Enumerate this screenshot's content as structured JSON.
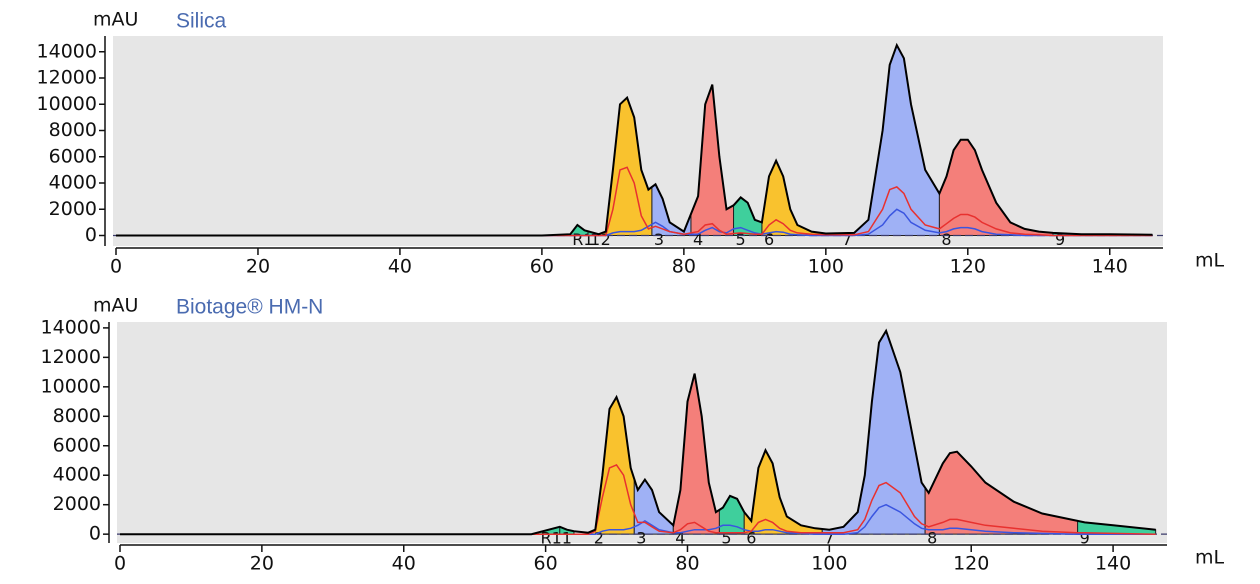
{
  "chart_data": [
    {
      "type": "area",
      "title": "Silica",
      "y_label": "mAU",
      "x_label": "mL",
      "xlim": [
        0,
        147.5
      ],
      "ylim": [
        -800,
        15200
      ],
      "xticks": [
        0,
        20,
        40,
        60,
        80,
        100,
        120,
        140
      ],
      "yticks": [
        0,
        2000,
        4000,
        6000,
        8000,
        10000,
        12000,
        14000
      ],
      "x": [
        0,
        60,
        64,
        65,
        66,
        68,
        69,
        70,
        71,
        72,
        73,
        74,
        75,
        76,
        77,
        78,
        80,
        82,
        83,
        84,
        85,
        86,
        87,
        88,
        89,
        90,
        91,
        92,
        93,
        94,
        95,
        96,
        98,
        100,
        104,
        106,
        108,
        109,
        110,
        111,
        112,
        114,
        116,
        117,
        118,
        119,
        120,
        121,
        122,
        124,
        126,
        128,
        130,
        132,
        136,
        140,
        146
      ],
      "series": [
        {
          "color": "#000000",
          "values": [
            0,
            0,
            100,
            800,
            400,
            100,
            300,
            5000,
            10000,
            10500,
            9000,
            5000,
            3500,
            3900,
            2800,
            1000,
            300,
            3000,
            10000,
            11500,
            6000,
            2000,
            2300,
            2900,
            2500,
            1200,
            1000,
            4500,
            5700,
            4500,
            2000,
            800,
            300,
            150,
            200,
            1200,
            8000,
            13000,
            14500,
            13500,
            10000,
            5000,
            3200,
            4500,
            6500,
            7300,
            7300,
            6500,
            5000,
            2500,
            1000,
            500,
            300,
            200,
            100,
            100,
            50
          ]
        },
        {
          "color": "#e8312f",
          "values": [
            0,
            0,
            0,
            0,
            0,
            0,
            0,
            2000,
            5000,
            5200,
            4000,
            1500,
            500,
            700,
            500,
            300,
            100,
            300,
            800,
            900,
            400,
            100,
            150,
            200,
            150,
            100,
            100,
            800,
            1200,
            900,
            400,
            200,
            100,
            50,
            50,
            300,
            2000,
            3500,
            3700,
            3200,
            2000,
            800,
            500,
            900,
            1300,
            1600,
            1600,
            1400,
            1000,
            500,
            200,
            100,
            50,
            0,
            0,
            0,
            0
          ]
        },
        {
          "color": "#3a55e0",
          "values": [
            0,
            0,
            0,
            0,
            0,
            0,
            0,
            200,
            300,
            300,
            300,
            400,
            700,
            1000,
            700,
            300,
            100,
            100,
            400,
            600,
            300,
            200,
            500,
            600,
            400,
            200,
            100,
            200,
            300,
            250,
            100,
            50,
            0,
            0,
            0,
            100,
            800,
            1500,
            2000,
            1700,
            1000,
            400,
            200,
            300,
            500,
            600,
            600,
            500,
            300,
            100,
            50,
            0,
            0,
            0,
            0,
            0,
            0
          ]
        }
      ],
      "fractions": [
        {
          "label": "R1",
          "start": 64,
          "end": 66.5,
          "color": "#3fcf9c"
        },
        {
          "label": "1",
          "start": 66.5,
          "end": 68,
          "color": "#3fcf9c"
        },
        {
          "label": "2",
          "start": 68,
          "end": 75.5,
          "color": "#f9c22e"
        },
        {
          "label": "3",
          "start": 75.5,
          "end": 81,
          "color": "#9fb1f5"
        },
        {
          "label": "4",
          "start": 81,
          "end": 87,
          "color": "#f47f7a"
        },
        {
          "label": "5",
          "start": 87,
          "end": 91,
          "color": "#3fcf9c"
        },
        {
          "label": "6",
          "start": 91,
          "end": 102,
          "color": "#f9c22e"
        },
        {
          "label": "7",
          "start": 102,
          "end": 116,
          "color": "#9fb1f5"
        },
        {
          "label": "8",
          "start": 116,
          "end": 132,
          "color": "#f47f7a"
        },
        {
          "label": "9",
          "start": 132,
          "end": 146,
          "color": "#3fcf9c"
        }
      ]
    },
    {
      "type": "area",
      "title": "Biotage® HM-N",
      "y_label": "mAU",
      "x_label": "mL",
      "xlim": [
        0,
        147.6
      ],
      "ylim": [
        -600,
        14400
      ],
      "xticks": [
        0,
        20,
        40,
        60,
        80,
        100,
        120,
        140
      ],
      "yticks": [
        0,
        2000,
        4000,
        6000,
        8000,
        10000,
        12000,
        14000
      ],
      "x": [
        0,
        58,
        62,
        63,
        64,
        66,
        67,
        68,
        69,
        70,
        71,
        72,
        73,
        74,
        75,
        76,
        78,
        79,
        80,
        81,
        82,
        83,
        84,
        85,
        86,
        87,
        88,
        89,
        90,
        91,
        92,
        93,
        94,
        96,
        98,
        100,
        102,
        104,
        105,
        106,
        107,
        108,
        110,
        112,
        113,
        114,
        116,
        117,
        118,
        120,
        122,
        126,
        130,
        135,
        136,
        140,
        146
      ],
      "series": [
        {
          "color": "#000000",
          "values": [
            0,
            0,
            500,
            300,
            200,
            100,
            300,
            4000,
            8500,
            9300,
            8000,
            4500,
            3000,
            3700,
            3000,
            1500,
            600,
            3000,
            9000,
            10900,
            8000,
            3500,
            1500,
            1800,
            2600,
            2400,
            1500,
            900,
            4500,
            5700,
            4800,
            2500,
            1200,
            600,
            400,
            300,
            500,
            1500,
            4000,
            9000,
            13000,
            13800,
            11000,
            6000,
            3500,
            2800,
            4800,
            5500,
            5600,
            4600,
            3500,
            2200,
            1400,
            900,
            800,
            600,
            300
          ]
        },
        {
          "color": "#e8312f",
          "values": [
            0,
            0,
            0,
            0,
            0,
            0,
            200,
            2500,
            4500,
            4700,
            4000,
            2000,
            800,
            800,
            500,
            200,
            100,
            300,
            700,
            800,
            500,
            200,
            100,
            100,
            100,
            100,
            100,
            200,
            800,
            1000,
            800,
            400,
            200,
            100,
            100,
            100,
            100,
            300,
            1000,
            2300,
            3300,
            3500,
            2800,
            1200,
            700,
            500,
            800,
            1000,
            1000,
            800,
            600,
            400,
            200,
            100,
            100,
            50,
            0
          ]
        },
        {
          "color": "#3a55e0",
          "values": [
            0,
            0,
            0,
            0,
            0,
            0,
            0,
            200,
            300,
            300,
            300,
            400,
            600,
            900,
            600,
            300,
            100,
            100,
            200,
            300,
            300,
            300,
            400,
            600,
            600,
            500,
            300,
            200,
            200,
            300,
            300,
            200,
            100,
            50,
            0,
            0,
            0,
            100,
            500,
            1200,
            1800,
            2000,
            1500,
            700,
            400,
            300,
            300,
            400,
            400,
            300,
            200,
            100,
            50,
            0,
            0,
            0,
            0
          ]
        }
      ],
      "fractions": [
        {
          "label": "R1",
          "start": 59,
          "end": 62,
          "color": "#3fcf9c"
        },
        {
          "label": "1",
          "start": 62,
          "end": 64,
          "color": "#3fcf9c"
        },
        {
          "label": "2",
          "start": 66.5,
          "end": 72.5,
          "color": "#f9c22e"
        },
        {
          "label": "3",
          "start": 72.5,
          "end": 78,
          "color": "#9fb1f5"
        },
        {
          "label": "4",
          "start": 78,
          "end": 84.5,
          "color": "#f47f7a"
        },
        {
          "label": "5",
          "start": 84.5,
          "end": 88,
          "color": "#3fcf9c"
        },
        {
          "label": "6",
          "start": 88,
          "end": 99,
          "color": "#f9c22e"
        },
        {
          "label": "7",
          "start": 99,
          "end": 113.5,
          "color": "#9fb1f5"
        },
        {
          "label": "8",
          "start": 113.5,
          "end": 135,
          "color": "#f47f7a"
        },
        {
          "label": "9",
          "start": 135,
          "end": 146,
          "color": "#3fcf9c"
        }
      ]
    }
  ]
}
